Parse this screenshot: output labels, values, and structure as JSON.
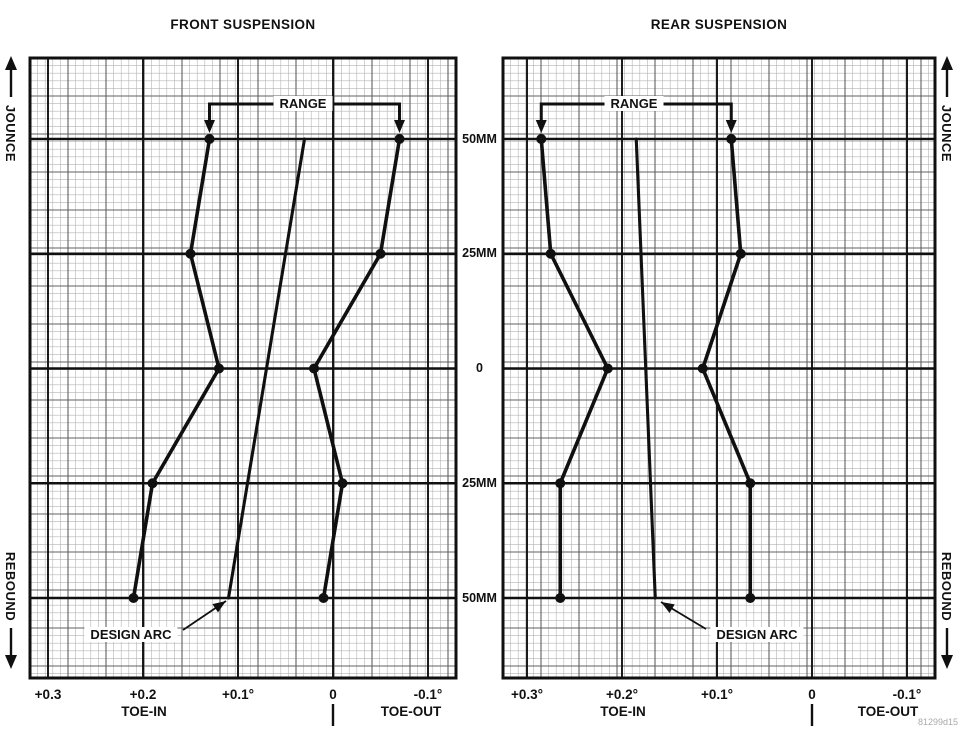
{
  "figure": {
    "watermark": "81299d15"
  },
  "colors": {
    "ink": "#101010",
    "grid_minor": "#b4b4b4",
    "grid_medium": "#606060",
    "background": "#ffffff"
  },
  "edge_labels": {
    "jounce": "JOUNCE",
    "rebound": "REBOUND"
  },
  "annotations": {
    "range_label": "RANGE",
    "design_arc_label": "DESIGN ARC"
  },
  "bottom_axis": {
    "toe_in": "TOE-IN",
    "toe_out": "TOE-OUT"
  },
  "y_axis": {
    "ticks": [
      "50MM",
      "25MM",
      "0",
      "25MM",
      "50MM"
    ],
    "values_mm": [
      50,
      25,
      0,
      -25,
      -50
    ]
  },
  "chart_data": [
    {
      "type": "line",
      "title": "FRONT SUSPENSION",
      "x_ticks": [
        "+0.3",
        "+0.2",
        "+0.1°",
        "0",
        "-0.1°"
      ],
      "x_tick_values": [
        0.3,
        0.2,
        0.1,
        0,
        -0.1
      ],
      "xlim": [
        0.32,
        -0.13
      ],
      "ylim_mm": [
        -67,
        68
      ],
      "grid": "on",
      "legend": "none",
      "x_axis_note": "toe degrees, toe-in positive, axis reversed (toe-in at left)",
      "y_axis_note": "suspension travel, jounce up / rebound down",
      "series": [
        {
          "name": "range-left-limit",
          "markers": true,
          "jounce_mm": [
            50,
            25,
            0,
            -25,
            -50
          ],
          "toe_deg": [
            0.13,
            0.15,
            0.12,
            0.19,
            0.21
          ]
        },
        {
          "name": "design-arc",
          "markers": false,
          "jounce_mm": [
            50,
            -50
          ],
          "toe_deg": [
            0.03,
            0.11
          ]
        },
        {
          "name": "range-right-limit",
          "markers": true,
          "jounce_mm": [
            50,
            25,
            0,
            -25,
            -50
          ],
          "toe_deg": [
            -0.07,
            -0.05,
            0.02,
            -0.01,
            0.01
          ]
        }
      ]
    },
    {
      "type": "line",
      "title": "REAR SUSPENSION",
      "x_ticks": [
        "+0.3°",
        "+0.2°",
        "+0.1°",
        "0",
        "-0.1°"
      ],
      "x_tick_values": [
        0.3,
        0.2,
        0.1,
        0,
        -0.1
      ],
      "xlim": [
        0.33,
        -0.13
      ],
      "ylim_mm": [
        -67,
        68
      ],
      "grid": "on",
      "legend": "none",
      "x_axis_note": "toe degrees, toe-in positive, axis reversed (toe-in at left)",
      "y_axis_note": "suspension travel, jounce up / rebound down",
      "series": [
        {
          "name": "range-left-limit",
          "markers": true,
          "jounce_mm": [
            50,
            25,
            0,
            -25,
            -50
          ],
          "toe_deg": [
            0.285,
            0.275,
            0.215,
            0.265,
            0.265
          ]
        },
        {
          "name": "design-arc",
          "markers": false,
          "jounce_mm": [
            50,
            -50
          ],
          "toe_deg": [
            0.185,
            0.165
          ]
        },
        {
          "name": "range-right-limit",
          "markers": true,
          "jounce_mm": [
            50,
            25,
            0,
            -25,
            -50
          ],
          "toe_deg": [
            0.085,
            0.075,
            0.115,
            0.065,
            0.065
          ]
        }
      ]
    }
  ]
}
